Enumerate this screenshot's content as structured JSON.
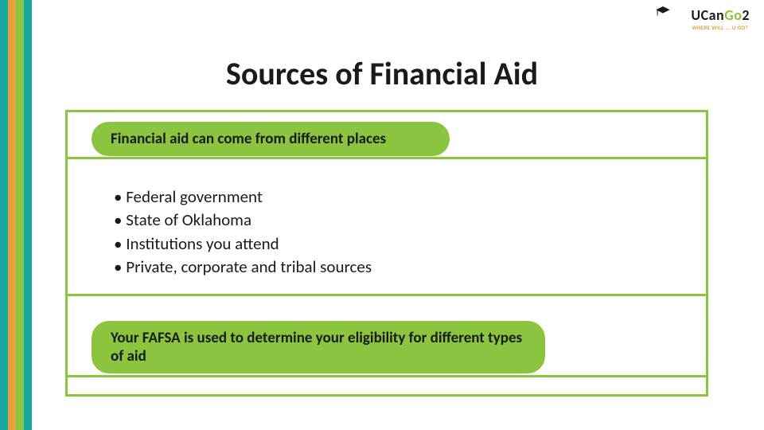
{
  "colors": {
    "teal": "#1aa6a0",
    "yellow": "#e4a03a",
    "green": "#8bc53f",
    "card_border": "#8bc53f",
    "pill_bg": "#8bc53f",
    "sep": "#8bc53f",
    "title": "#1a1a1a",
    "logo_u": "#1a1a1a",
    "logo_can": "#1a1a1a",
    "logo_go": "#8bc53f",
    "logo_2": "#1a1a1a"
  },
  "stripes": {
    "widths": [
      10,
      10,
      10,
      10
    ],
    "colors": [
      "#1aa6a0",
      "#e4a03a",
      "#8bc53f",
      "#1aa6a0"
    ]
  },
  "logo": {
    "u": "U",
    "can": "Can",
    "go": "Go",
    "two": "2",
    "tagline": "WHERE WILL ... U GO?"
  },
  "title": "Sources of Financial Aid",
  "pill1": "Financial aid can come from different places",
  "bullets": [
    "Federal government",
    "State of Oklahoma",
    "Institutions you attend",
    "Private, corporate and tribal sources"
  ],
  "pill2": "Your FAFSA is used to determine your eligibility for different types of aid"
}
